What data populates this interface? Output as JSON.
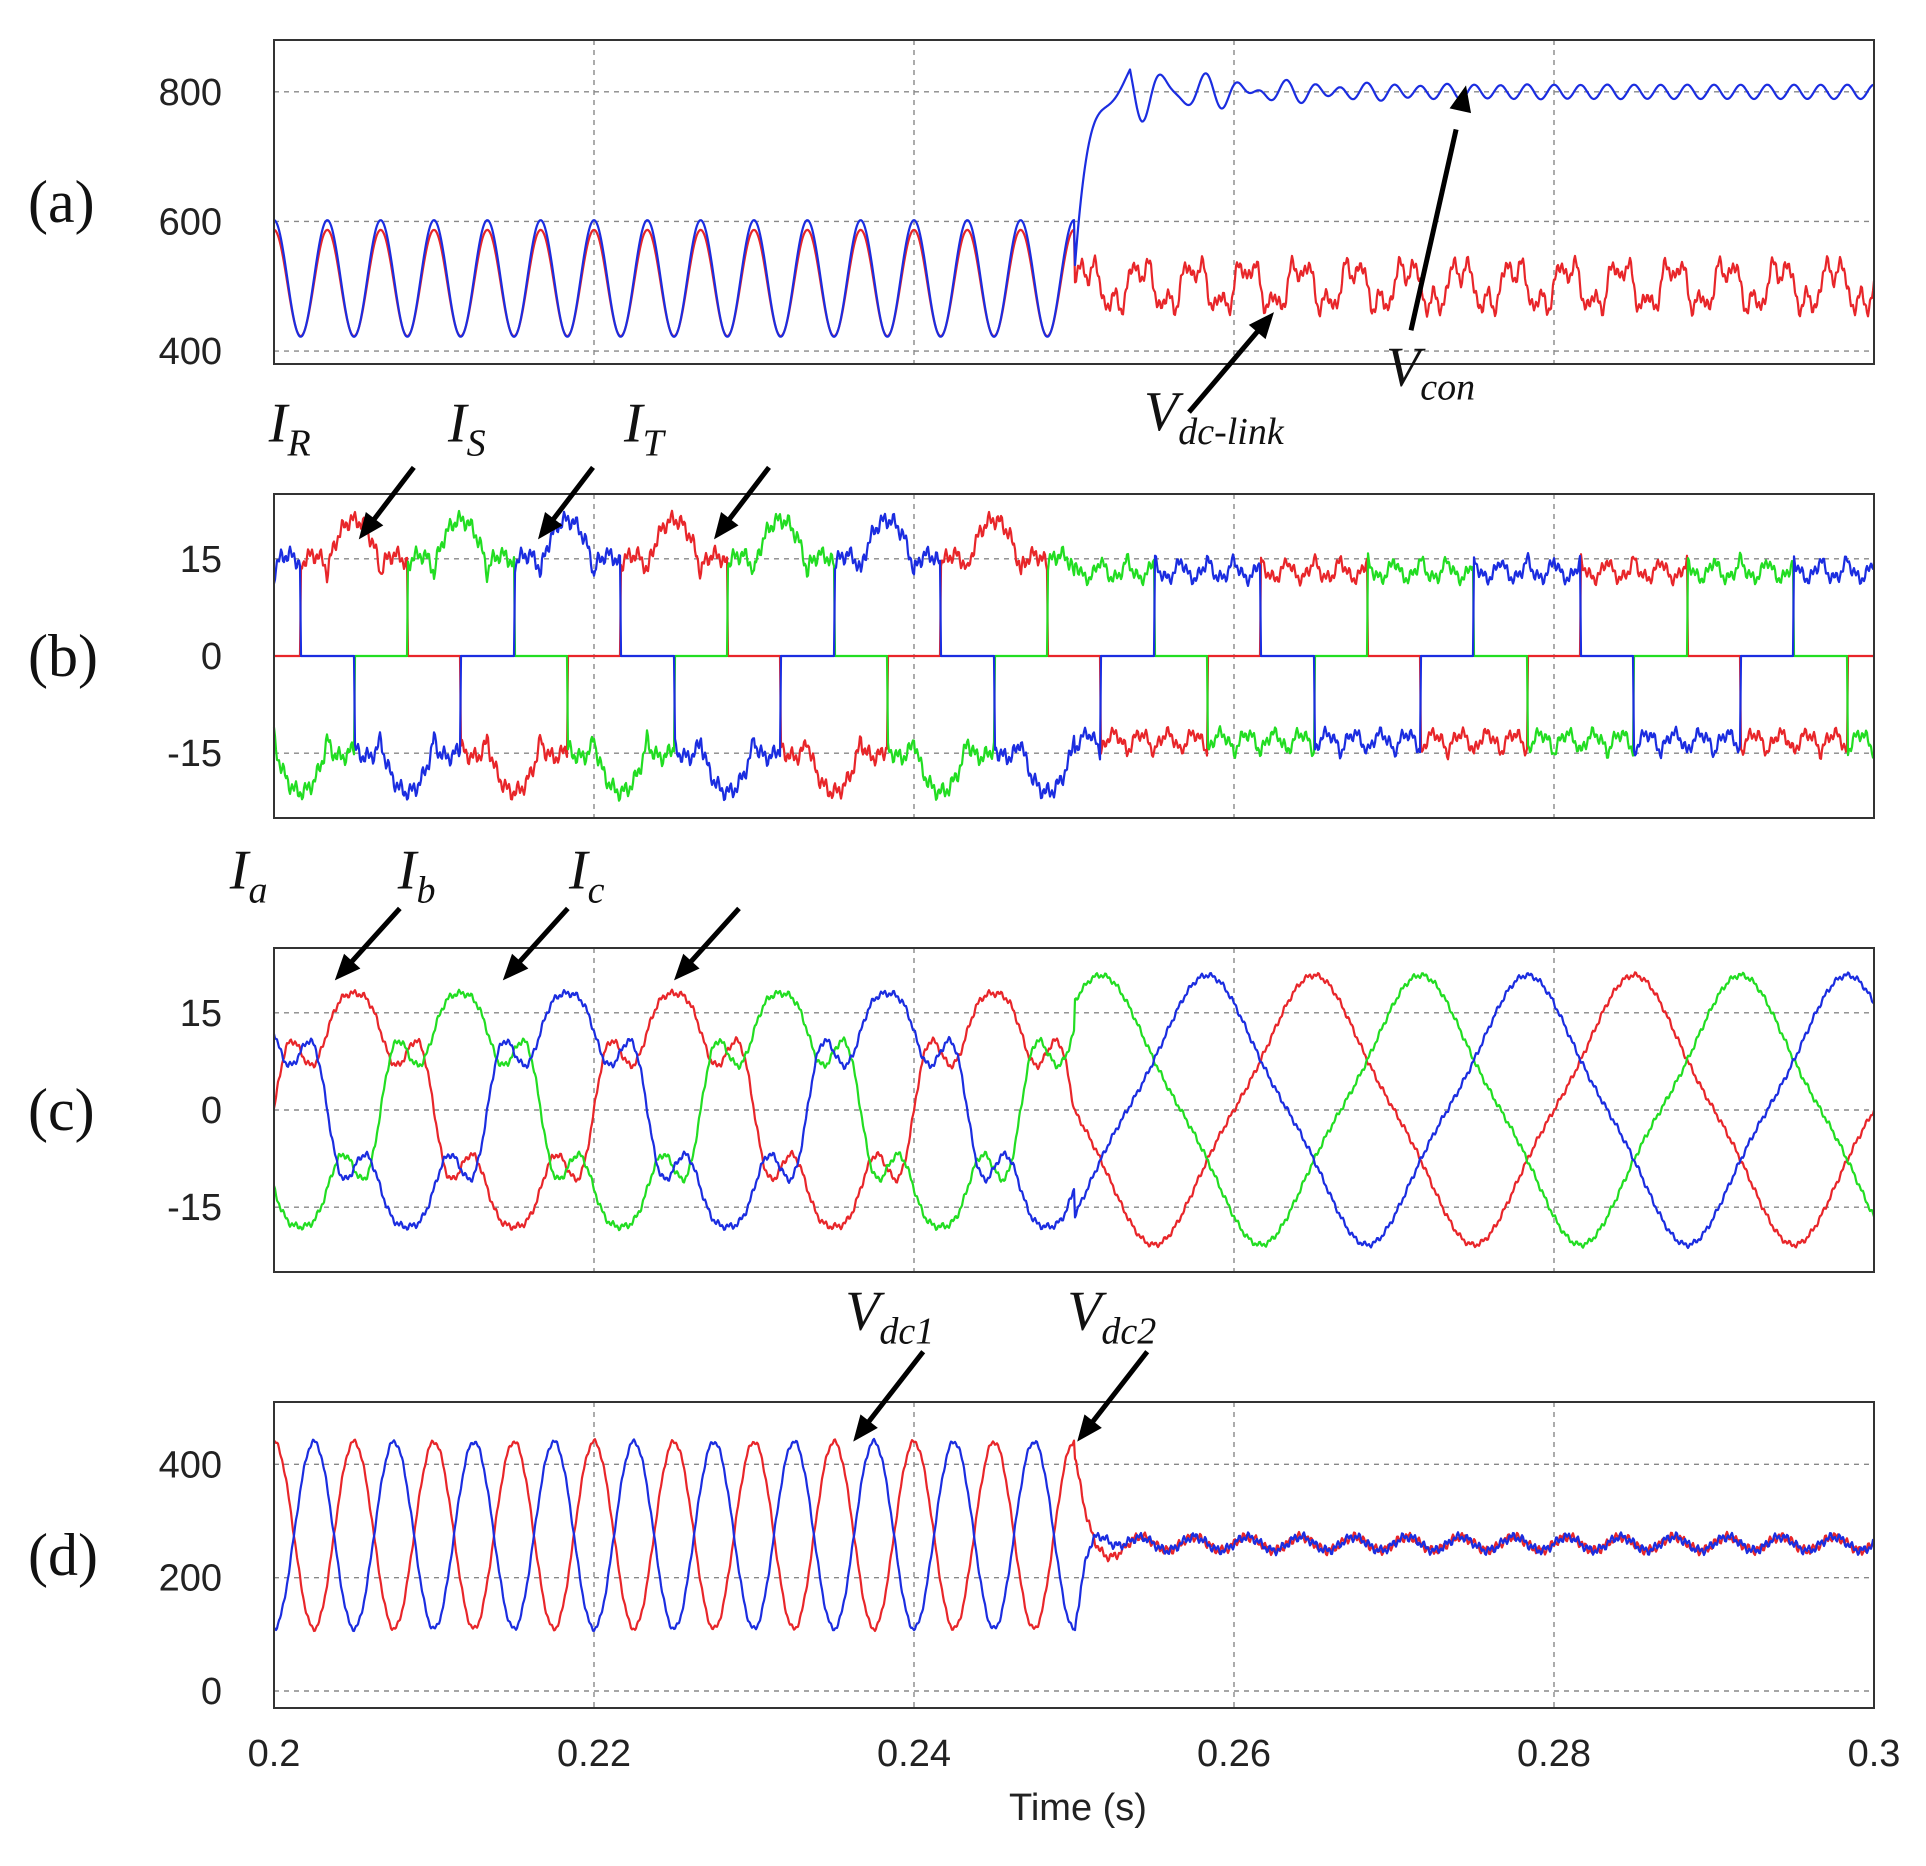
{
  "chart_data": [
    {
      "type": "line",
      "panel_label": "(a)",
      "xlim": [
        0.2,
        0.3
      ],
      "ylim": [
        380,
        880
      ],
      "yticks": [
        400,
        600,
        800
      ],
      "yticklabels": [
        "400",
        "600",
        "800"
      ],
      "grid": true,
      "series": [
        {
          "name": "V_dc-link",
          "color": "#e8262a",
          "model": "dclink"
        },
        {
          "name": "V_con",
          "color": "#1b2de0",
          "model": "vcon"
        }
      ],
      "annotations": [
        {
          "id": "vdclink",
          "main": "V",
          "sub": "dc-link",
          "target_x": 0.2625,
          "target_y": 460
        },
        {
          "id": "vcon",
          "main": "V",
          "sub": "con",
          "target_x": 0.2745,
          "target_y": 810
        }
      ]
    },
    {
      "type": "line",
      "panel_label": "(b)",
      "xlim": [
        0.2,
        0.3
      ],
      "ylim": [
        -25,
        25
      ],
      "yticks": [
        -15,
        0,
        15
      ],
      "yticklabels": [
        "-15",
        "0",
        "15"
      ],
      "grid": true,
      "series": [
        {
          "name": "I_R",
          "color": "#e8262a",
          "phase_deg": 0
        },
        {
          "name": "I_S",
          "color": "#22dd22",
          "phase_deg": -120
        },
        {
          "name": "I_T",
          "color": "#1b2de0",
          "phase_deg": 120
        }
      ],
      "annotations": [
        {
          "id": "ir",
          "main": "I",
          "sub": "R",
          "target_x": 0.2053,
          "target_y": 18
        },
        {
          "id": "is",
          "main": "I",
          "sub": "S",
          "target_x": 0.2165,
          "target_y": 18
        },
        {
          "id": "it",
          "main": "I",
          "sub": "T",
          "target_x": 0.2275,
          "target_y": 18
        }
      ]
    },
    {
      "type": "line",
      "panel_label": "(c)",
      "xlim": [
        0.2,
        0.3
      ],
      "ylim": [
        -25,
        25
      ],
      "yticks": [
        -15,
        0,
        15
      ],
      "yticklabels": [
        "-15",
        "0",
        "15"
      ],
      "grid": true,
      "series": [
        {
          "name": "I_a",
          "color": "#e8262a",
          "phase_deg": 0
        },
        {
          "name": "I_b",
          "color": "#22dd22",
          "phase_deg": -120
        },
        {
          "name": "I_c",
          "color": "#1b2de0",
          "phase_deg": 120
        }
      ],
      "annotations": [
        {
          "id": "ia",
          "main": "I",
          "sub": "a",
          "target_x": 0.2038,
          "target_y": 20
        },
        {
          "id": "ib",
          "main": "I",
          "sub": "b",
          "target_x": 0.2143,
          "target_y": 20
        },
        {
          "id": "ic",
          "main": "I",
          "sub": "c",
          "target_x": 0.225,
          "target_y": 20
        }
      ]
    },
    {
      "type": "line",
      "panel_label": "(d)",
      "xlim": [
        0.2,
        0.3
      ],
      "ylim": [
        -30,
        510
      ],
      "yticks": [
        0,
        200,
        400
      ],
      "yticklabels": [
        "0",
        "200",
        "400"
      ],
      "xticks": [
        0.2,
        0.22,
        0.24,
        0.26,
        0.28,
        0.3
      ],
      "xticklabels": [
        "0.2",
        "0.22",
        "0.24",
        "0.26",
        "0.28",
        "0.3"
      ],
      "xlabel": "Time (s)",
      "grid": true,
      "series": [
        {
          "name": "V_dc1",
          "color": "#e8262a",
          "phase_deg": 0
        },
        {
          "name": "V_dc2",
          "color": "#1b2de0",
          "phase_deg": 180
        }
      ],
      "annotations": [
        {
          "id": "vdc1",
          "main": "V",
          "sub": "dc1",
          "target_x": 0.2362,
          "target_y": 440
        },
        {
          "id": "vdc2",
          "main": "V",
          "sub": "dc2",
          "target_x": 0.2502,
          "target_y": 440
        }
      ]
    }
  ]
}
